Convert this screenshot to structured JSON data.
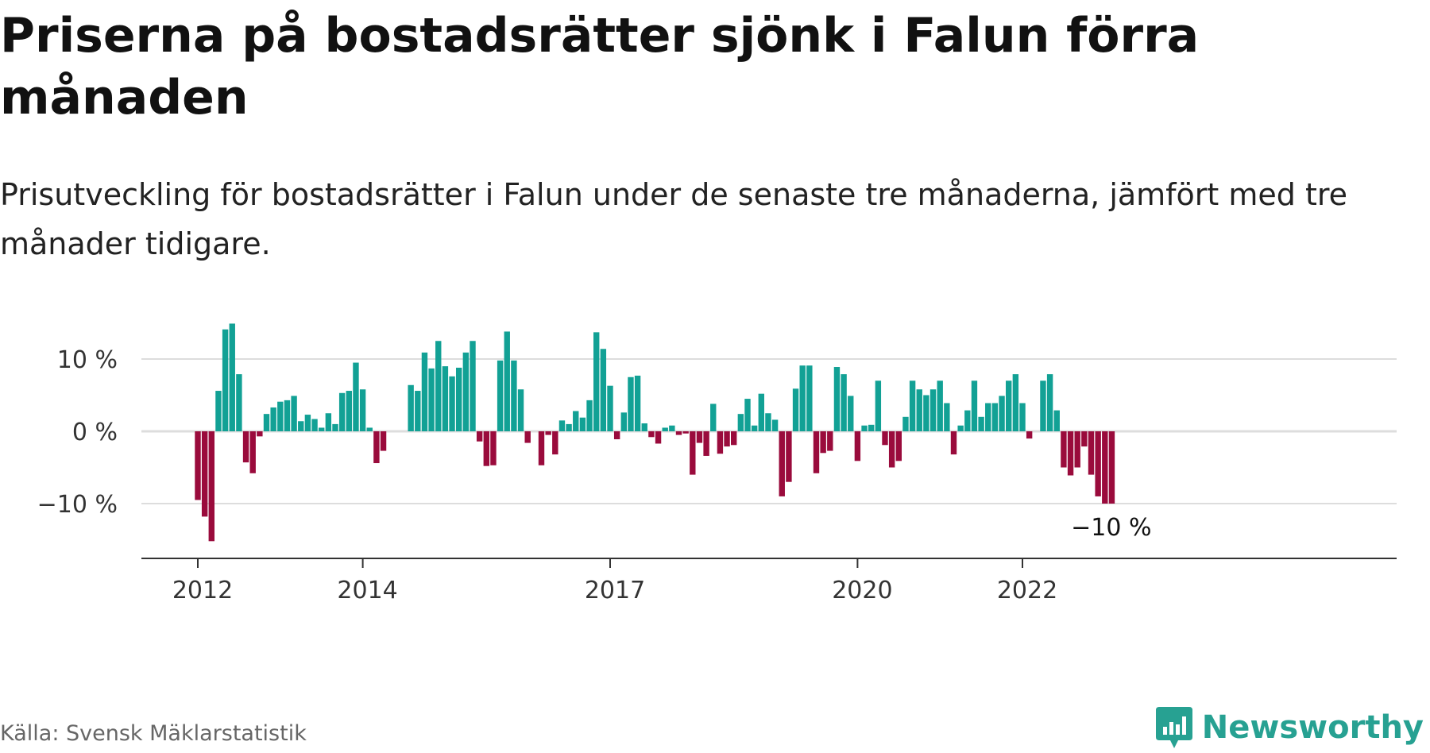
{
  "header": {
    "title": "Priserna på bostadsrätter sjönk i Falun förra månaden",
    "subtitle": "Prisutveckling för bostadsrätter i Falun under de senaste tre månaderna, jämfört med tre månader tidigare."
  },
  "footer": {
    "source": "Källa: Svensk Mäklarstatistik",
    "brand": "Newsworthy"
  },
  "colors": {
    "positive": "#12a195",
    "negative": "#9a0b3c",
    "gridline": "#dddddd",
    "axis": "#333333",
    "brand": "#27a192"
  },
  "icons": {
    "brand_logo": "bar-chart-speech-bubble-icon"
  },
  "chart_data": {
    "type": "bar",
    "title": "Priserna på bostadsrätter sjönk i Falun förra månaden",
    "subtitle": "Prisutveckling för bostadsrätter i Falun under de senaste tre månaderna, jämfört med tre månader tidigare.",
    "x_start": "2012-01",
    "unit": "%",
    "ylim": [
      -17,
      11
    ],
    "y_ticks": [
      {
        "value": 10,
        "label": "10 %"
      },
      {
        "value": 0,
        "label": "0 %"
      },
      {
        "value": -10,
        "label": "−10 %"
      }
    ],
    "x_ticks": [
      {
        "date": "2012-01",
        "label": "2012"
      },
      {
        "date": "2014-01",
        "label": "2014"
      },
      {
        "date": "2017-01",
        "label": "2017"
      },
      {
        "date": "2020-01",
        "label": "2020"
      },
      {
        "date": "2022-01",
        "label": "2022"
      }
    ],
    "grid": true,
    "last_value_label": "−10 %",
    "values": [
      -9.5,
      -11.8,
      -15.2,
      5.6,
      14.1,
      14.9,
      7.9,
      -4.3,
      -5.8,
      -0.7,
      2.4,
      3.3,
      4.1,
      4.3,
      4.9,
      1.4,
      2.3,
      1.7,
      0.5,
      2.5,
      1.0,
      5.3,
      5.6,
      9.5,
      5.8,
      0.5,
      -4.4,
      -2.7,
      null,
      null,
      null,
      6.4,
      5.6,
      10.9,
      8.7,
      12.5,
      9.0,
      7.6,
      8.8,
      10.9,
      12.5,
      -1.4,
      -4.8,
      -4.7,
      9.8,
      13.8,
      9.8,
      5.8,
      -1.6,
      null,
      -4.7,
      -0.5,
      -3.2,
      1.5,
      1.0,
      2.8,
      1.9,
      4.3,
      13.7,
      11.4,
      6.3,
      -1.1,
      2.6,
      7.5,
      7.7,
      1.1,
      -0.8,
      -1.7,
      0.5,
      0.8,
      -0.5,
      -0.3,
      -6.0,
      -1.6,
      -3.4,
      3.8,
      -3.1,
      -2.1,
      -1.9,
      2.4,
      4.5,
      0.8,
      5.2,
      2.5,
      1.6,
      -9.0,
      -7.0,
      5.9,
      9.1,
      9.1,
      -5.8,
      -3.0,
      -2.7,
      8.9,
      7.9,
      4.9,
      -4.1,
      0.8,
      0.9,
      7.0,
      -1.9,
      -5.0,
      -4.1,
      2.0,
      7.0,
      5.8,
      5.0,
      5.8,
      7.0,
      3.9,
      -3.2,
      0.8,
      2.9,
      7.0,
      2.0,
      3.9,
      3.9,
      4.9,
      7.0,
      7.9,
      3.9,
      -1.0,
      null,
      7.0,
      7.9,
      2.9,
      -5.0,
      -6.1,
      -5.0,
      -2.1,
      -6.0,
      -9.0,
      -10.0,
      -10.0
    ]
  }
}
